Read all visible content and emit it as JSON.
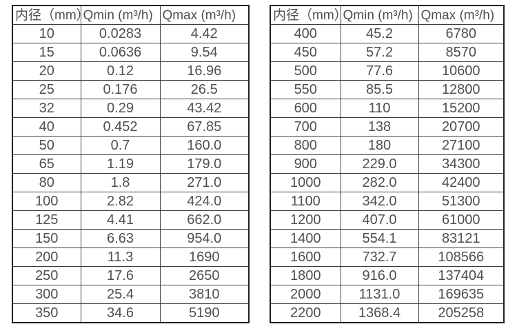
{
  "colors": {
    "background": "#ffffff",
    "text": "#4f4f4f",
    "grid_line": "#3c3c3c",
    "outer_border": "#1e1e1e"
  },
  "tables": [
    {
      "name": "diameter-flow-table-small",
      "headers": [
        "内径（mm）",
        "Qmin (m³/h)",
        "Qmax (m³/h)"
      ],
      "rows": [
        [
          "10",
          "0.0283",
          "4.42"
        ],
        [
          "15",
          "0.0636",
          "9.54"
        ],
        [
          "20",
          "0.12",
          "16.96"
        ],
        [
          "25",
          "0.176",
          "26.5"
        ],
        [
          "32",
          "0.29",
          "43.42"
        ],
        [
          "40",
          "0.452",
          "67.85"
        ],
        [
          "50",
          "0.7",
          "160.0"
        ],
        [
          "65",
          "1.19",
          "179.0"
        ],
        [
          "80",
          "1.8",
          "271.0"
        ],
        [
          "100",
          "2.82",
          "424.0"
        ],
        [
          "125",
          "4.41",
          "662.0"
        ],
        [
          "150",
          "6.63",
          "954.0"
        ],
        [
          "200",
          "11.3",
          "1690"
        ],
        [
          "250",
          "17.6",
          "2650"
        ],
        [
          "300",
          "25.4",
          "3810"
        ],
        [
          "350",
          "34.6",
          "5190"
        ]
      ]
    },
    {
      "name": "diameter-flow-table-large",
      "headers": [
        "内径（mm）",
        "Qmin (m³/h)",
        "Qmax (m³/h)"
      ],
      "rows": [
        [
          "400",
          "45.2",
          "6780"
        ],
        [
          "450",
          "57.2",
          "8570"
        ],
        [
          "500",
          "77.6",
          "10600"
        ],
        [
          "550",
          "85.5",
          "12800"
        ],
        [
          "600",
          "110",
          "15200"
        ],
        [
          "700",
          "138",
          "20700"
        ],
        [
          "800",
          "180",
          "27100"
        ],
        [
          "900",
          "229.0",
          "34300"
        ],
        [
          "1000",
          "282.0",
          "42400"
        ],
        [
          "1100",
          "342.0",
          "51300"
        ],
        [
          "1200",
          "407.0",
          "61000"
        ],
        [
          "1400",
          "554.1",
          "83121"
        ],
        [
          "1600",
          "732.7",
          "108566"
        ],
        [
          "1800",
          "916.0",
          "137404"
        ],
        [
          "2000",
          "1131.0",
          "169635"
        ],
        [
          "2200",
          "1368.4",
          "205258"
        ]
      ]
    }
  ]
}
